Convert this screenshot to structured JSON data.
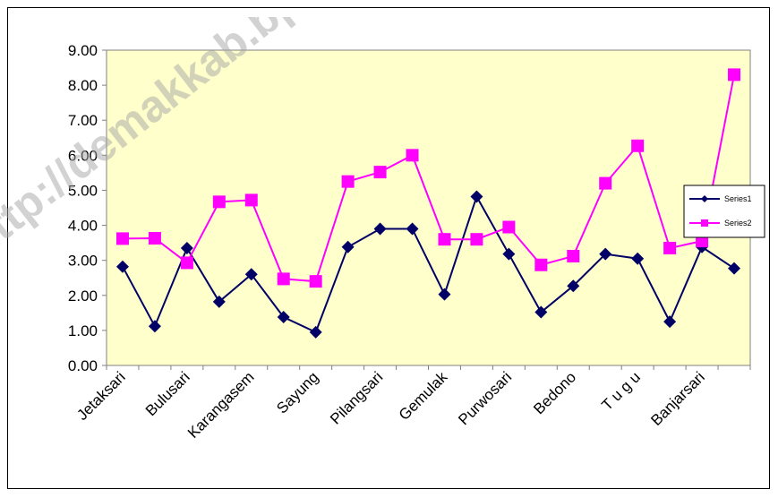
{
  "chart_data": {
    "type": "line",
    "title": "",
    "xlabel": "",
    "ylabel": "",
    "ylim": [
      0,
      9
    ],
    "yticks": [
      "0.00",
      "1.00",
      "2.00",
      "3.00",
      "4.00",
      "5.00",
      "6.00",
      "7.00",
      "8.00",
      "9.00"
    ],
    "categories": [
      "Jetaksari",
      "",
      "Bulusari",
      "",
      "Karangasem",
      "",
      "Sayung",
      "",
      "Pilangsari",
      "",
      "Gemulak",
      "",
      "Purwosari",
      "",
      "Bedono",
      "",
      "T u g u",
      "",
      "Banjarsari",
      ""
    ],
    "series": [
      {
        "name": "Series1",
        "color": "#000066",
        "marker": "diamond",
        "values": [
          2.82,
          1.12,
          3.35,
          1.82,
          2.6,
          1.38,
          0.95,
          3.38,
          3.9,
          3.9,
          2.03,
          4.82,
          3.18,
          1.52,
          2.27,
          3.18,
          3.05,
          1.25,
          3.38,
          2.77
        ]
      },
      {
        "name": "Series2",
        "color": "#ff00ff",
        "marker": "square",
        "values": [
          3.62,
          3.63,
          2.93,
          4.67,
          4.72,
          2.47,
          2.4,
          5.25,
          5.52,
          6.0,
          3.6,
          3.6,
          3.95,
          2.87,
          3.12,
          5.2,
          6.27,
          3.35,
          3.55,
          8.3
        ]
      }
    ],
    "grid": false,
    "legend": "right",
    "plot_background": "#ffffcc"
  },
  "watermark": "http://demakkab.bps.go.id"
}
